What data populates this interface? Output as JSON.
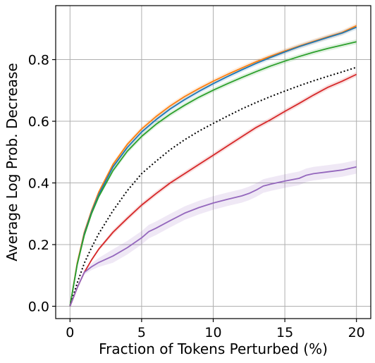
{
  "chart_data": {
    "type": "line",
    "title": "",
    "xlabel": "Fraction of Tokens Perturbed (%)",
    "ylabel": "Average Log Prob. Decrease",
    "xlim": [
      -1,
      21
    ],
    "ylim": [
      -0.04,
      0.975
    ],
    "x_ticks": [
      0,
      5,
      10,
      15,
      20
    ],
    "y_ticks": [
      0.0,
      0.2,
      0.4,
      0.6,
      0.8
    ],
    "x_tick_labels": [
      "0",
      "5",
      "10",
      "15",
      "20"
    ],
    "y_tick_labels": [
      "0.0",
      "0.2",
      "0.4",
      "0.6",
      "0.8"
    ],
    "grid": true,
    "legend": "none",
    "series": [
      {
        "color": "#ff7f0e",
        "style": "solid",
        "x": [
          0,
          0.5,
          1,
          1.5,
          2,
          3,
          4,
          5,
          6,
          7,
          8,
          9,
          10,
          11,
          12,
          13,
          14,
          15,
          16,
          17,
          18,
          19,
          20
        ],
        "y": [
          0.0,
          0.14,
          0.24,
          0.31,
          0.37,
          0.46,
          0.525,
          0.575,
          0.615,
          0.65,
          0.68,
          0.706,
          0.73,
          0.752,
          0.773,
          0.793,
          0.811,
          0.828,
          0.844,
          0.859,
          0.874,
          0.888,
          0.91
        ]
      },
      {
        "color": "#1f77b4",
        "style": "solid",
        "x": [
          0,
          0.5,
          1,
          1.5,
          2,
          3,
          4,
          5,
          6,
          7,
          8,
          9,
          10,
          11,
          12,
          13,
          14,
          15,
          16,
          17,
          18,
          19,
          20
        ],
        "y": [
          0.0,
          0.135,
          0.235,
          0.305,
          0.362,
          0.452,
          0.515,
          0.565,
          0.605,
          0.64,
          0.67,
          0.697,
          0.722,
          0.745,
          0.767,
          0.788,
          0.807,
          0.825,
          0.842,
          0.857,
          0.872,
          0.886,
          0.905
        ]
      },
      {
        "color": "#2ca02c",
        "style": "solid",
        "x": [
          0,
          0.5,
          1,
          1.5,
          2,
          3,
          4,
          5,
          6,
          7,
          8,
          9,
          10,
          11,
          12,
          13,
          14,
          15,
          16,
          17,
          18,
          19,
          20
        ],
        "y": [
          0.0,
          0.135,
          0.23,
          0.3,
          0.355,
          0.44,
          0.503,
          0.551,
          0.59,
          0.623,
          0.652,
          0.678,
          0.701,
          0.722,
          0.742,
          0.761,
          0.779,
          0.795,
          0.81,
          0.824,
          0.836,
          0.847,
          0.858
        ]
      },
      {
        "color": "#000000",
        "style": "dotted",
        "x": [
          0,
          0.5,
          1,
          1.5,
          2,
          3,
          4,
          5,
          6,
          7,
          8,
          9,
          10,
          11,
          12,
          13,
          14,
          15,
          16,
          17,
          18,
          19,
          20
        ],
        "y": [
          0.0,
          0.075,
          0.14,
          0.19,
          0.235,
          0.31,
          0.375,
          0.43,
          0.47,
          0.508,
          0.54,
          0.568,
          0.593,
          0.617,
          0.64,
          0.661,
          0.68,
          0.698,
          0.715,
          0.731,
          0.746,
          0.76,
          0.775
        ]
      },
      {
        "color": "#d62728",
        "style": "solid",
        "x": [
          0,
          0.5,
          1,
          1.5,
          2,
          3,
          4,
          5,
          6,
          7,
          8,
          9,
          10,
          11,
          12,
          13,
          14,
          15,
          16,
          17,
          18,
          19,
          20
        ],
        "y": [
          0.0,
          0.06,
          0.11,
          0.15,
          0.185,
          0.24,
          0.285,
          0.328,
          0.365,
          0.4,
          0.43,
          0.46,
          0.49,
          0.52,
          0.55,
          0.58,
          0.605,
          0.632,
          0.658,
          0.685,
          0.71,
          0.73,
          0.752
        ]
      },
      {
        "color": "#9467bd",
        "style": "solid",
        "x": [
          0,
          0.5,
          1,
          1.5,
          2,
          3,
          4,
          5,
          5.5,
          6,
          7,
          8,
          9,
          10,
          11,
          12,
          12.5,
          13,
          13.5,
          14,
          15,
          16,
          16.5,
          17,
          18,
          19,
          20
        ],
        "y": [
          0.0,
          0.06,
          0.11,
          0.128,
          0.142,
          0.163,
          0.19,
          0.222,
          0.242,
          0.253,
          0.278,
          0.302,
          0.32,
          0.335,
          0.347,
          0.358,
          0.366,
          0.377,
          0.39,
          0.396,
          0.406,
          0.415,
          0.425,
          0.43,
          0.436,
          0.442,
          0.452
        ]
      }
    ]
  }
}
